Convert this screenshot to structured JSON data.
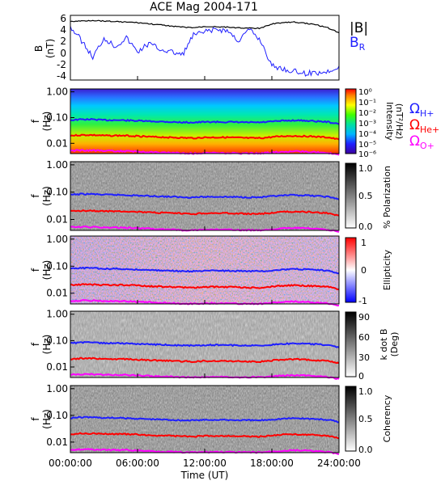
{
  "title": "ACE Mag 2004-171",
  "xaxis": {
    "label": "Time (UT)",
    "ticks": [
      "00:00:00",
      "06:00:00",
      "12:00:00",
      "18:00:00",
      "24:00:00"
    ],
    "range_hours": [
      0,
      24
    ]
  },
  "legend_top": {
    "b_mag": "|B|",
    "b_r": "B",
    "b_r_sub": "R"
  },
  "legend_ions": [
    {
      "symbol": "Ω",
      "sub": "H+",
      "color": "#1f1fff"
    },
    {
      "symbol": "Ω",
      "sub": "He+",
      "color": "#ff0000"
    },
    {
      "symbol": "Ω",
      "sub": "O+",
      "color": "#ff00ff"
    }
  ],
  "colors": {
    "b_mag": "#000000",
    "b_r": "#1f1fff",
    "h_plus": "#1f1fff",
    "he_plus": "#ff0000",
    "o_plus": "#ff00ff"
  },
  "panels": {
    "b": {
      "ylabel": "B",
      "yunit": "(nT)",
      "yticks": [
        "6",
        "4",
        "2",
        "0",
        "-2",
        "-4"
      ],
      "ylim": [
        -5,
        6.5
      ]
    },
    "spectral": {
      "ylabel": "f",
      "yunit": "(Hz)",
      "yticks": [
        "1.00",
        "0.10",
        "0.01"
      ],
      "ylim": [
        0.004,
        1.3
      ],
      "yscale": "log"
    },
    "intensity": {
      "cbar_label": "Intensity",
      "cbar_unit": "(nT²/Hz)",
      "cbar_ticks": [
        "10⁰",
        "10⁻¹",
        "10⁻²",
        "10⁻³",
        "10⁻⁴",
        "10⁻⁵",
        "10⁻⁶"
      ],
      "cmap": "rainbow"
    },
    "polarization": {
      "cbar_label": "% Polarization",
      "cbar_ticks": [
        "1.0",
        "0.5",
        "0.0"
      ],
      "cmap": "gray"
    },
    "ellipticity": {
      "cbar_label": "Ellipticity",
      "cbar_ticks": [
        "1",
        "0",
        "-1"
      ],
      "cmap": "bwr"
    },
    "kdotb": {
      "cbar_label": "k dot B",
      "cbar_unit": "(Deg)",
      "cbar_ticks": [
        "90",
        "60",
        "30",
        "0"
      ],
      "cmap": "gray"
    },
    "coherency": {
      "cbar_label": "Coherency",
      "cbar_ticks": [
        "1.0",
        "0.5",
        "0.0"
      ],
      "cmap": "gray"
    }
  },
  "chart_data": {
    "type": "line",
    "x_hours": [
      0,
      1,
      2,
      3,
      4,
      5,
      6,
      7,
      8,
      9,
      10,
      11,
      12,
      13,
      14,
      15,
      16,
      17,
      18,
      19,
      20,
      21,
      22,
      23,
      24
    ],
    "series": [
      {
        "name": "|B|",
        "values": [
          5.4,
          5.5,
          5.6,
          5.5,
          5.4,
          5.3,
          5.2,
          5.0,
          4.8,
          4.6,
          4.4,
          4.3,
          4.5,
          4.5,
          4.4,
          4.3,
          4.2,
          4.2,
          5.0,
          5.2,
          5.3,
          5.1,
          4.8,
          4.3,
          3.4
        ]
      },
      {
        "name": "B_R",
        "values": [
          4.5,
          2.0,
          -1.0,
          2.5,
          1.0,
          2.5,
          0.0,
          1.5,
          0.5,
          0.0,
          -0.5,
          3.0,
          3.5,
          4.0,
          3.8,
          2.0,
          4.0,
          2.0,
          -2.5,
          -3.0,
          -3.5,
          -3.8,
          -3.7,
          -3.5,
          -2.5
        ]
      },
      {
        "name": "ΩH+",
        "values": [
          0.08,
          0.085,
          0.085,
          0.08,
          0.08,
          0.078,
          0.075,
          0.072,
          0.07,
          0.068,
          0.065,
          0.065,
          0.067,
          0.068,
          0.067,
          0.066,
          0.065,
          0.065,
          0.07,
          0.075,
          0.078,
          0.076,
          0.072,
          0.068,
          0.055
        ]
      },
      {
        "name": "ΩHe+",
        "values": [
          0.02,
          0.021,
          0.021,
          0.02,
          0.02,
          0.02,
          0.019,
          0.018,
          0.0175,
          0.017,
          0.0165,
          0.016,
          0.017,
          0.017,
          0.017,
          0.0165,
          0.016,
          0.016,
          0.0175,
          0.019,
          0.0195,
          0.019,
          0.018,
          0.017,
          0.014
        ]
      },
      {
        "name": "ΩO+",
        "values": [
          0.0052,
          0.0053,
          0.0053,
          0.0051,
          0.005,
          0.005,
          0.0048,
          0.0046,
          0.0044,
          0.0043,
          0.0041,
          0.0041,
          0.0042,
          0.0043,
          0.0042,
          0.0041,
          0.0041,
          0.0041,
          0.0044,
          0.0047,
          0.0049,
          0.0048,
          0.0045,
          0.0042,
          0.0035
        ]
      }
    ]
  }
}
